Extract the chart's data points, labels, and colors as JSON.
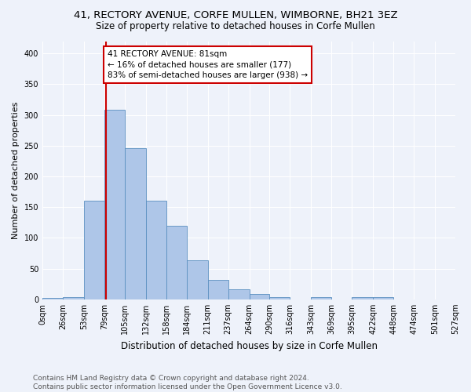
{
  "title1": "41, RECTORY AVENUE, CORFE MULLEN, WIMBORNE, BH21 3EZ",
  "title2": "Size of property relative to detached houses in Corfe Mullen",
  "xlabel": "Distribution of detached houses by size in Corfe Mullen",
  "ylabel": "Number of detached properties",
  "footer1": "Contains HM Land Registry data © Crown copyright and database right 2024.",
  "footer2": "Contains public sector information licensed under the Open Government Licence v3.0.",
  "bin_edges": [
    0,
    26,
    53,
    79,
    105,
    132,
    158,
    184,
    211,
    237,
    264,
    290,
    316,
    343,
    369,
    395,
    422,
    448,
    474,
    501,
    527
  ],
  "bin_labels": [
    "0sqm",
    "26sqm",
    "53sqm",
    "79sqm",
    "105sqm",
    "132sqm",
    "158sqm",
    "184sqm",
    "211sqm",
    "237sqm",
    "264sqm",
    "290sqm",
    "316sqm",
    "343sqm",
    "369sqm",
    "395sqm",
    "422sqm",
    "448sqm",
    "474sqm",
    "501sqm",
    "527sqm"
  ],
  "bar_heights": [
    2,
    4,
    160,
    308,
    246,
    161,
    120,
    64,
    32,
    16,
    9,
    3,
    0,
    3,
    0,
    3,
    4,
    0,
    0,
    0
  ],
  "bar_color": "#aec6e8",
  "bar_edge_color": "#5a8fc0",
  "property_size": 81,
  "vline_color": "#cc0000",
  "annotation_text": "41 RECTORY AVENUE: 81sqm\n← 16% of detached houses are smaller (177)\n83% of semi-detached houses are larger (938) →",
  "annotation_box_color": "#cc0000",
  "ylim": [
    0,
    420
  ],
  "yticks": [
    0,
    50,
    100,
    150,
    200,
    250,
    300,
    350,
    400
  ],
  "background_color": "#eef2fa",
  "grid_color": "#ffffff",
  "title1_fontsize": 9.5,
  "title2_fontsize": 8.5,
  "xlabel_fontsize": 8.5,
  "ylabel_fontsize": 8,
  "tick_fontsize": 7,
  "footer_fontsize": 6.5,
  "annot_fontsize": 7.5
}
